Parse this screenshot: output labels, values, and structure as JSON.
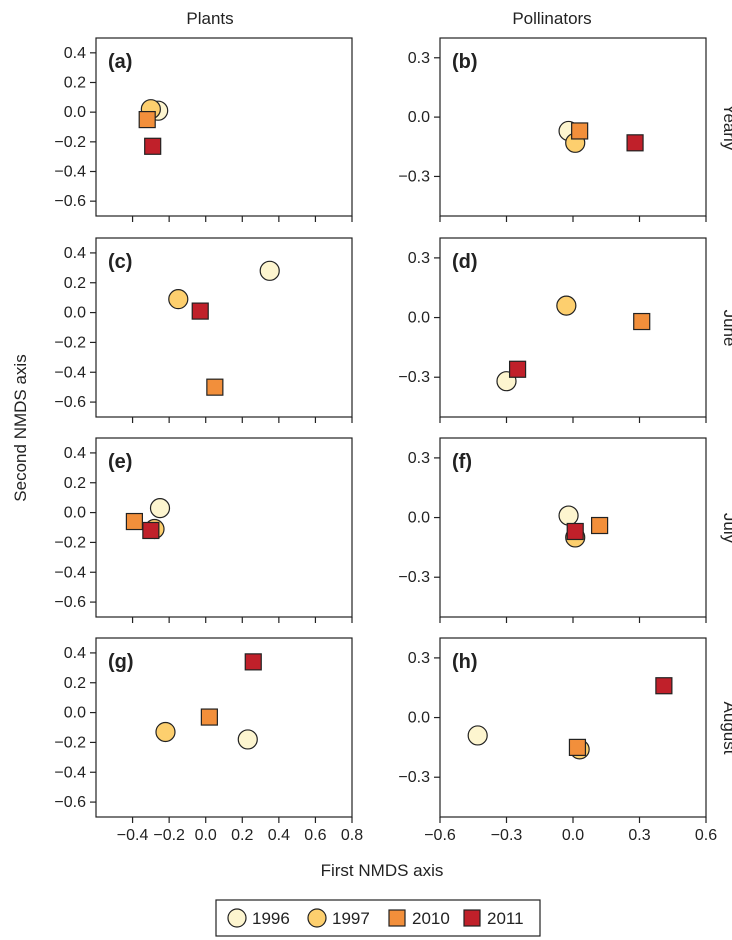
{
  "figure": {
    "column_titles": [
      "Plants",
      "Pollinators"
    ],
    "row_labels": [
      "Yearly",
      "June",
      "July",
      "August"
    ],
    "xlabel": "First NMDS axis",
    "ylabel": "Second NMDS axis"
  },
  "legend": [
    {
      "label": "1996",
      "marker": "circle",
      "color": "#fdf5cf"
    },
    {
      "label": "1997",
      "marker": "circle",
      "color": "#fdcf6e"
    },
    {
      "label": "2010",
      "marker": "square",
      "color": "#f28f3b"
    },
    {
      "label": "2011",
      "marker": "square",
      "color": "#c0202a"
    }
  ],
  "chart_data": [
    {
      "type": "scatter",
      "tag": "(a)",
      "column": "Plants",
      "row": "Yearly",
      "xlim": [
        -0.6,
        0.8
      ],
      "ylim": [
        -0.7,
        0.5
      ],
      "xticks": [
        -0.4,
        -0.2,
        0.0,
        0.2,
        0.4,
        0.6,
        0.8
      ],
      "yticks": [
        0.4,
        0.2,
        0.0,
        -0.2,
        -0.4,
        -0.6
      ],
      "ytick_labels": [
        "0.4",
        "0.2",
        "0.0",
        "−0.2",
        "−0.4",
        "−0.6"
      ],
      "show_x_tick_labels": false,
      "series": [
        {
          "name": "1996",
          "x": -0.26,
          "y": 0.01
        },
        {
          "name": "1997",
          "x": -0.3,
          "y": 0.02
        },
        {
          "name": "2010",
          "x": -0.32,
          "y": -0.05
        },
        {
          "name": "2011",
          "x": -0.29,
          "y": -0.23
        }
      ]
    },
    {
      "type": "scatter",
      "tag": "(b)",
      "column": "Pollinators",
      "row": "Yearly",
      "xlim": [
        -0.6,
        0.6
      ],
      "ylim": [
        -0.5,
        0.4
      ],
      "xticks": [
        -0.6,
        -0.3,
        0.0,
        0.3,
        0.6
      ],
      "yticks": [
        0.3,
        0.0,
        -0.3
      ],
      "ytick_labels": [
        "0.3",
        "0.0",
        "−0.3"
      ],
      "show_x_tick_labels": false,
      "series": [
        {
          "name": "1996",
          "x": -0.02,
          "y": -0.07
        },
        {
          "name": "1997",
          "x": 0.01,
          "y": -0.13
        },
        {
          "name": "2010",
          "x": 0.03,
          "y": -0.07
        },
        {
          "name": "2011",
          "x": 0.28,
          "y": -0.13
        }
      ]
    },
    {
      "type": "scatter",
      "tag": "(c)",
      "column": "Plants",
      "row": "June",
      "xlim": [
        -0.6,
        0.8
      ],
      "ylim": [
        -0.7,
        0.5
      ],
      "xticks": [
        -0.4,
        -0.2,
        0.0,
        0.2,
        0.4,
        0.6,
        0.8
      ],
      "yticks": [
        0.4,
        0.2,
        0.0,
        -0.2,
        -0.4,
        -0.6
      ],
      "ytick_labels": [
        "0.4",
        "0.2",
        "0.0",
        "−0.2",
        "−0.4",
        "−0.6"
      ],
      "show_x_tick_labels": false,
      "series": [
        {
          "name": "1996",
          "x": 0.35,
          "y": 0.28
        },
        {
          "name": "1997",
          "x": -0.15,
          "y": 0.09
        },
        {
          "name": "2010",
          "x": 0.05,
          "y": -0.5
        },
        {
          "name": "2011",
          "x": -0.03,
          "y": 0.01
        }
      ]
    },
    {
      "type": "scatter",
      "tag": "(d)",
      "column": "Pollinators",
      "row": "June",
      "xlim": [
        -0.6,
        0.6
      ],
      "ylim": [
        -0.5,
        0.4
      ],
      "xticks": [
        -0.6,
        -0.3,
        0.0,
        0.3,
        0.6
      ],
      "yticks": [
        0.3,
        0.0,
        -0.3
      ],
      "ytick_labels": [
        "0.3",
        "0.0",
        "−0.3"
      ],
      "show_x_tick_labels": false,
      "series": [
        {
          "name": "1996",
          "x": -0.3,
          "y": -0.32
        },
        {
          "name": "1997",
          "x": -0.03,
          "y": 0.06
        },
        {
          "name": "2010",
          "x": 0.31,
          "y": -0.02
        },
        {
          "name": "2011",
          "x": -0.25,
          "y": -0.26
        }
      ]
    },
    {
      "type": "scatter",
      "tag": "(e)",
      "column": "Plants",
      "row": "July",
      "xlim": [
        -0.6,
        0.8
      ],
      "ylim": [
        -0.7,
        0.5
      ],
      "xticks": [
        -0.4,
        -0.2,
        0.0,
        0.2,
        0.4,
        0.6,
        0.8
      ],
      "yticks": [
        0.4,
        0.2,
        0.0,
        -0.2,
        -0.4,
        -0.6
      ],
      "ytick_labels": [
        "0.4",
        "0.2",
        "0.0",
        "−0.2",
        "−0.4",
        "−0.6"
      ],
      "show_x_tick_labels": false,
      "series": [
        {
          "name": "1996",
          "x": -0.25,
          "y": 0.03
        },
        {
          "name": "1997",
          "x": -0.28,
          "y": -0.11
        },
        {
          "name": "2010",
          "x": -0.39,
          "y": -0.06
        },
        {
          "name": "2011",
          "x": -0.3,
          "y": -0.12
        }
      ]
    },
    {
      "type": "scatter",
      "tag": "(f)",
      "column": "Pollinators",
      "row": "July",
      "xlim": [
        -0.6,
        0.6
      ],
      "ylim": [
        -0.5,
        0.4
      ],
      "xticks": [
        -0.6,
        -0.3,
        0.0,
        0.3,
        0.6
      ],
      "yticks": [
        0.3,
        0.0,
        -0.3
      ],
      "ytick_labels": [
        "0.3",
        "0.0",
        "−0.3"
      ],
      "show_x_tick_labels": false,
      "series": [
        {
          "name": "1996",
          "x": -0.02,
          "y": 0.01
        },
        {
          "name": "1997",
          "x": 0.01,
          "y": -0.1
        },
        {
          "name": "2010",
          "x": 0.12,
          "y": -0.04
        },
        {
          "name": "2011",
          "x": 0.01,
          "y": -0.07
        }
      ]
    },
    {
      "type": "scatter",
      "tag": "(g)",
      "column": "Plants",
      "row": "August",
      "xlim": [
        -0.6,
        0.8
      ],
      "ylim": [
        -0.7,
        0.5
      ],
      "xticks": [
        -0.4,
        -0.2,
        0.0,
        0.2,
        0.4,
        0.6,
        0.8
      ],
      "xtick_labels": [
        "−0.4",
        "−0.2",
        "0.0",
        "0.2",
        "0.4",
        "0.6",
        "0.8"
      ],
      "yticks": [
        0.4,
        0.2,
        0.0,
        -0.2,
        -0.4,
        -0.6
      ],
      "ytick_labels": [
        "0.4",
        "0.2",
        "0.0",
        "−0.2",
        "−0.4",
        "−0.6"
      ],
      "show_x_tick_labels": true,
      "series": [
        {
          "name": "1996",
          "x": 0.23,
          "y": -0.18
        },
        {
          "name": "1997",
          "x": -0.22,
          "y": -0.13
        },
        {
          "name": "2010",
          "x": 0.02,
          "y": -0.03
        },
        {
          "name": "2011",
          "x": 0.26,
          "y": 0.34
        }
      ]
    },
    {
      "type": "scatter",
      "tag": "(h)",
      "column": "Pollinators",
      "row": "August",
      "xlim": [
        -0.6,
        0.6
      ],
      "ylim": [
        -0.5,
        0.4
      ],
      "xticks": [
        -0.6,
        -0.3,
        0.0,
        0.3,
        0.6
      ],
      "xtick_labels": [
        "−0.6",
        "−0.3",
        "0.0",
        "0.3",
        "0.6"
      ],
      "yticks": [
        0.3,
        0.0,
        -0.3
      ],
      "ytick_labels": [
        "0.3",
        "0.0",
        "−0.3"
      ],
      "show_x_tick_labels": true,
      "series": [
        {
          "name": "1996",
          "x": -0.43,
          "y": -0.09
        },
        {
          "name": "1997",
          "x": 0.03,
          "y": -0.16
        },
        {
          "name": "2010",
          "x": 0.02,
          "y": -0.15
        },
        {
          "name": "2011",
          "x": 0.41,
          "y": 0.16
        }
      ]
    }
  ]
}
